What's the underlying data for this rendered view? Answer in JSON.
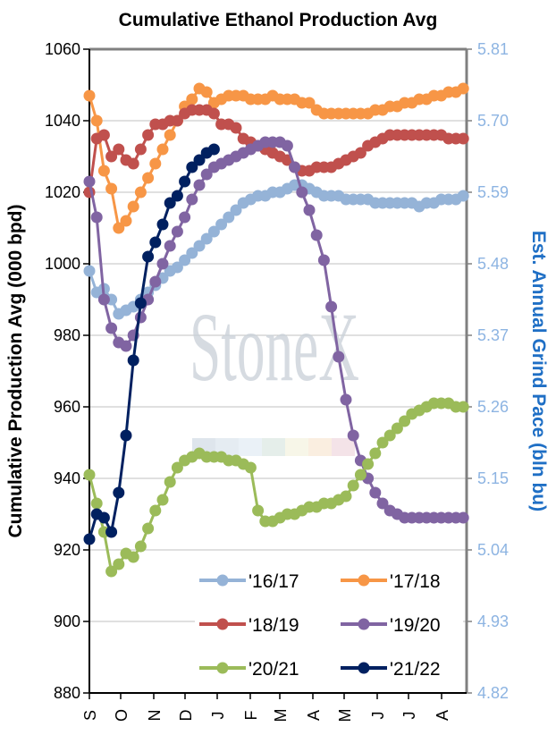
{
  "chart_data": {
    "type": "line",
    "title": "Cumulative Ethanol Production Avg",
    "ylabel": "Cumulative Production Avg (000 bpd)",
    "y2label": "Est. Annual Grind Pace (bln bu)",
    "ylim": [
      880,
      1060
    ],
    "yticks": [
      880,
      900,
      920,
      940,
      960,
      980,
      1000,
      1020,
      1040,
      1060
    ],
    "y2ticks": [
      "4.82",
      "4.93",
      "5.04",
      "5.15",
      "5.26",
      "5.37",
      "5.48",
      "5.59",
      "5.70",
      "5.81"
    ],
    "xticks": [
      "S",
      "O",
      "N",
      "D",
      "J",
      "F",
      "M",
      "A",
      "M",
      "J",
      "J",
      "A"
    ],
    "x_unit": "week of marketing year (Sep start)",
    "grid": "horizontal",
    "legend_position": "bottom-right",
    "watermark": "StoneX",
    "series": [
      {
        "name": "'16/17",
        "color": "#95B3D7",
        "values": [
          998,
          992,
          993,
          990,
          986,
          987,
          988,
          990,
          992,
          994,
          996,
          998,
          999,
          1001,
          1003,
          1005,
          1007,
          1009,
          1011,
          1013,
          1015,
          1017,
          1018,
          1019,
          1019,
          1020,
          1020,
          1021,
          1022,
          1022,
          1021,
          1020,
          1019,
          1019,
          1019,
          1018,
          1018,
          1018,
          1018,
          1017,
          1017,
          1017,
          1017,
          1017,
          1017,
          1016,
          1017,
          1017,
          1018,
          1018,
          1018,
          1019
        ]
      },
      {
        "name": "'17/18",
        "color": "#F79646",
        "values": [
          1047,
          1040,
          1026,
          1021,
          1010,
          1012,
          1016,
          1020,
          1024,
          1028,
          1032,
          1036,
          1040,
          1044,
          1046,
          1049,
          1048,
          1045,
          1046,
          1047,
          1047,
          1047,
          1046,
          1046,
          1046,
          1047,
          1046,
          1046,
          1046,
          1045,
          1045,
          1043,
          1042,
          1042,
          1042,
          1042,
          1042,
          1042,
          1042,
          1043,
          1043,
          1044,
          1044,
          1045,
          1045,
          1046,
          1046,
          1047,
          1047,
          1048,
          1048,
          1049
        ]
      },
      {
        "name": "'18/19",
        "color": "#C0504D",
        "values": [
          1020,
          1035,
          1036,
          1030,
          1032,
          1029,
          1028,
          1032,
          1036,
          1039,
          1039,
          1040,
          1040,
          1042,
          1043,
          1043,
          1043,
          1042,
          1039,
          1039,
          1038,
          1035,
          1034,
          1033,
          1032,
          1031,
          1030,
          1029,
          1027,
          1026,
          1026,
          1027,
          1027,
          1027,
          1028,
          1029,
          1030,
          1031,
          1033,
          1034,
          1035,
          1036,
          1036,
          1036,
          1036,
          1036,
          1036,
          1036,
          1036,
          1035,
          1035,
          1035
        ]
      },
      {
        "name": "'19/20",
        "color": "#8064A2",
        "values": [
          1023,
          1013,
          990,
          982,
          978,
          977,
          980,
          985,
          990,
          995,
          1000,
          1005,
          1009,
          1013,
          1018,
          1022,
          1025,
          1027,
          1028,
          1029,
          1030,
          1031,
          1032,
          1033,
          1034,
          1034,
          1034,
          1033,
          1027,
          1020,
          1015,
          1008,
          1001,
          988,
          974,
          962,
          952,
          945,
          940,
          936,
          933,
          931,
          930,
          929,
          929,
          929,
          929,
          929,
          929,
          929,
          929,
          929
        ]
      },
      {
        "name": "'20/21",
        "color": "#9BBB59",
        "values": [
          941,
          933,
          925,
          914,
          916,
          919,
          918,
          921,
          926,
          931,
          934,
          939,
          943,
          945,
          946,
          947,
          946,
          946,
          946,
          945,
          945,
          944,
          943,
          931,
          928,
          928,
          929,
          930,
          930,
          931,
          932,
          932,
          933,
          933,
          934,
          935,
          938,
          941,
          944,
          947,
          950,
          952,
          954,
          956,
          958,
          959,
          960,
          961,
          961,
          961,
          960,
          960
        ]
      },
      {
        "name": "'21/22",
        "color": "#002060",
        "values": [
          923,
          930,
          929,
          925,
          936,
          952,
          973,
          989,
          1002,
          1006,
          1011,
          1017,
          1019,
          1023,
          1027,
          1029,
          1031,
          1032
        ]
      }
    ]
  }
}
